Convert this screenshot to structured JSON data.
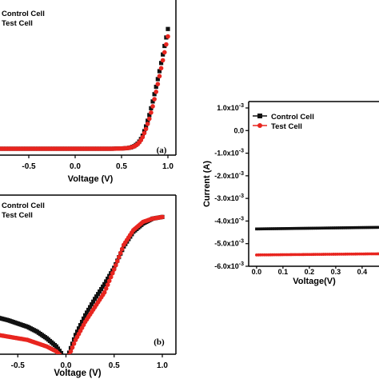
{
  "chart_data": [
    {
      "panel": "a",
      "type": "scatter",
      "panel_label": "(a)",
      "xlabel": "Voltage (V)",
      "ylabel": "",
      "xlim": [
        -1.0,
        1.0
      ],
      "x_ticks": [
        "-0.5",
        "0.0",
        "0.5",
        "1.0"
      ],
      "x_tick_values": [
        -0.5,
        0.0,
        0.5,
        1.0
      ],
      "ylim": [
        0,
        1
      ],
      "legend": {
        "placement": "top-left",
        "entries": [
          "Control Cell",
          "Test Cell"
        ]
      },
      "x": [
        -1.0,
        -0.8,
        -0.6,
        -0.4,
        -0.2,
        0.0,
        0.2,
        0.4,
        0.5,
        0.56,
        0.6,
        0.64,
        0.68,
        0.72,
        0.76,
        0.8,
        0.84,
        0.88,
        0.92,
        0.96,
        1.0
      ],
      "series": [
        {
          "name": "Control Cell",
          "color": "#111111",
          "marker": "square",
          "values": [
            0,
            0,
            0,
            0,
            0,
            0,
            0,
            0,
            0.002,
            0.005,
            0.01,
            0.022,
            0.045,
            0.09,
            0.17,
            0.27,
            0.39,
            0.52,
            0.66,
            0.81,
            0.96
          ]
        },
        {
          "name": "Test Cell",
          "color": "#e8251f",
          "marker": "circle",
          "values": [
            0,
            0,
            0,
            0,
            0,
            0,
            0,
            0,
            0.002,
            0.005,
            0.01,
            0.02,
            0.04,
            0.08,
            0.15,
            0.24,
            0.35,
            0.48,
            0.62,
            0.76,
            0.9
          ]
        }
      ]
    },
    {
      "panel": "b",
      "type": "scatter",
      "panel_label": "(b)",
      "xlabel": "Voltage (V)",
      "ylabel": "",
      "xlim": [
        -1.0,
        1.0
      ],
      "x_ticks": [
        "-0.5",
        "0.0",
        "0.5",
        "1.0"
      ],
      "x_tick_values": [
        -0.5,
        0.0,
        0.5,
        1.0
      ],
      "ylim": [
        0,
        1
      ],
      "legend": {
        "placement": "top-left",
        "entries": [
          "Control Cell",
          "Test Cell"
        ]
      },
      "x": [
        -1.0,
        -0.8,
        -0.6,
        -0.4,
        -0.3,
        -0.2,
        -0.1,
        -0.05,
        0.0,
        0.02,
        0.05,
        0.1,
        0.2,
        0.3,
        0.4,
        0.5,
        0.6,
        0.7,
        0.8,
        0.9,
        1.0
      ],
      "series": [
        {
          "name": "Control Cell",
          "color": "#111111",
          "marker": "square",
          "values": [
            0.36,
            0.33,
            0.3,
            0.26,
            0.23,
            0.19,
            0.14,
            0.1,
            0.05,
            0.08,
            0.13,
            0.21,
            0.33,
            0.43,
            0.52,
            0.62,
            0.75,
            0.84,
            0.89,
            0.92,
            0.93
          ]
        },
        {
          "name": "Test Cell",
          "color": "#e8251f",
          "marker": "circle",
          "values": [
            0.24,
            0.22,
            0.2,
            0.18,
            0.16,
            0.14,
            0.11,
            0.08,
            0.04,
            0.07,
            0.11,
            0.18,
            0.29,
            0.38,
            0.47,
            0.61,
            0.76,
            0.85,
            0.9,
            0.92,
            0.93
          ]
        }
      ]
    },
    {
      "panel": "c",
      "type": "scatter",
      "xlabel": "Voltage(V)",
      "ylabel": "Current (A)",
      "xlim": [
        -0.03,
        0.47
      ],
      "ylim": [
        -0.006,
        0.001
      ],
      "x_ticks": [
        "0.0",
        "0.1",
        "0.2",
        "0.3",
        "0.4"
      ],
      "x_tick_values": [
        0.0,
        0.1,
        0.2,
        0.3,
        0.4
      ],
      "y_tick_values": [
        0.001,
        0.0,
        -0.001,
        -0.002,
        -0.003,
        -0.004,
        -0.005,
        -0.006
      ],
      "y_ticks": [
        {
          "mant": "1.0x10",
          "exp": "-3"
        },
        {
          "mant": "0.0",
          "exp": ""
        },
        {
          "mant": "-1.0x10",
          "exp": "-3"
        },
        {
          "mant": "-2.0x10",
          "exp": "-3"
        },
        {
          "mant": "-3.0x10",
          "exp": "-3"
        },
        {
          "mant": "-4.0x10",
          "exp": "-3"
        },
        {
          "mant": "-5.0x10",
          "exp": "-3"
        },
        {
          "mant": "-6.0x10",
          "exp": "-3"
        }
      ],
      "legend": {
        "placement": "top-left",
        "entries": [
          "Control Cell",
          "Test Cell"
        ]
      },
      "series": [
        {
          "name": "Control Cell",
          "color": "#111111",
          "marker": "square",
          "x_start": 0.0,
          "x_end": 0.46,
          "y_start": -0.00435,
          "y_end": -0.00428
        },
        {
          "name": "Test Cell",
          "color": "#e8251f",
          "marker": "circle",
          "x_start": 0.0,
          "x_end": 0.46,
          "y_start": -0.0055,
          "y_end": -0.00545
        }
      ]
    }
  ]
}
